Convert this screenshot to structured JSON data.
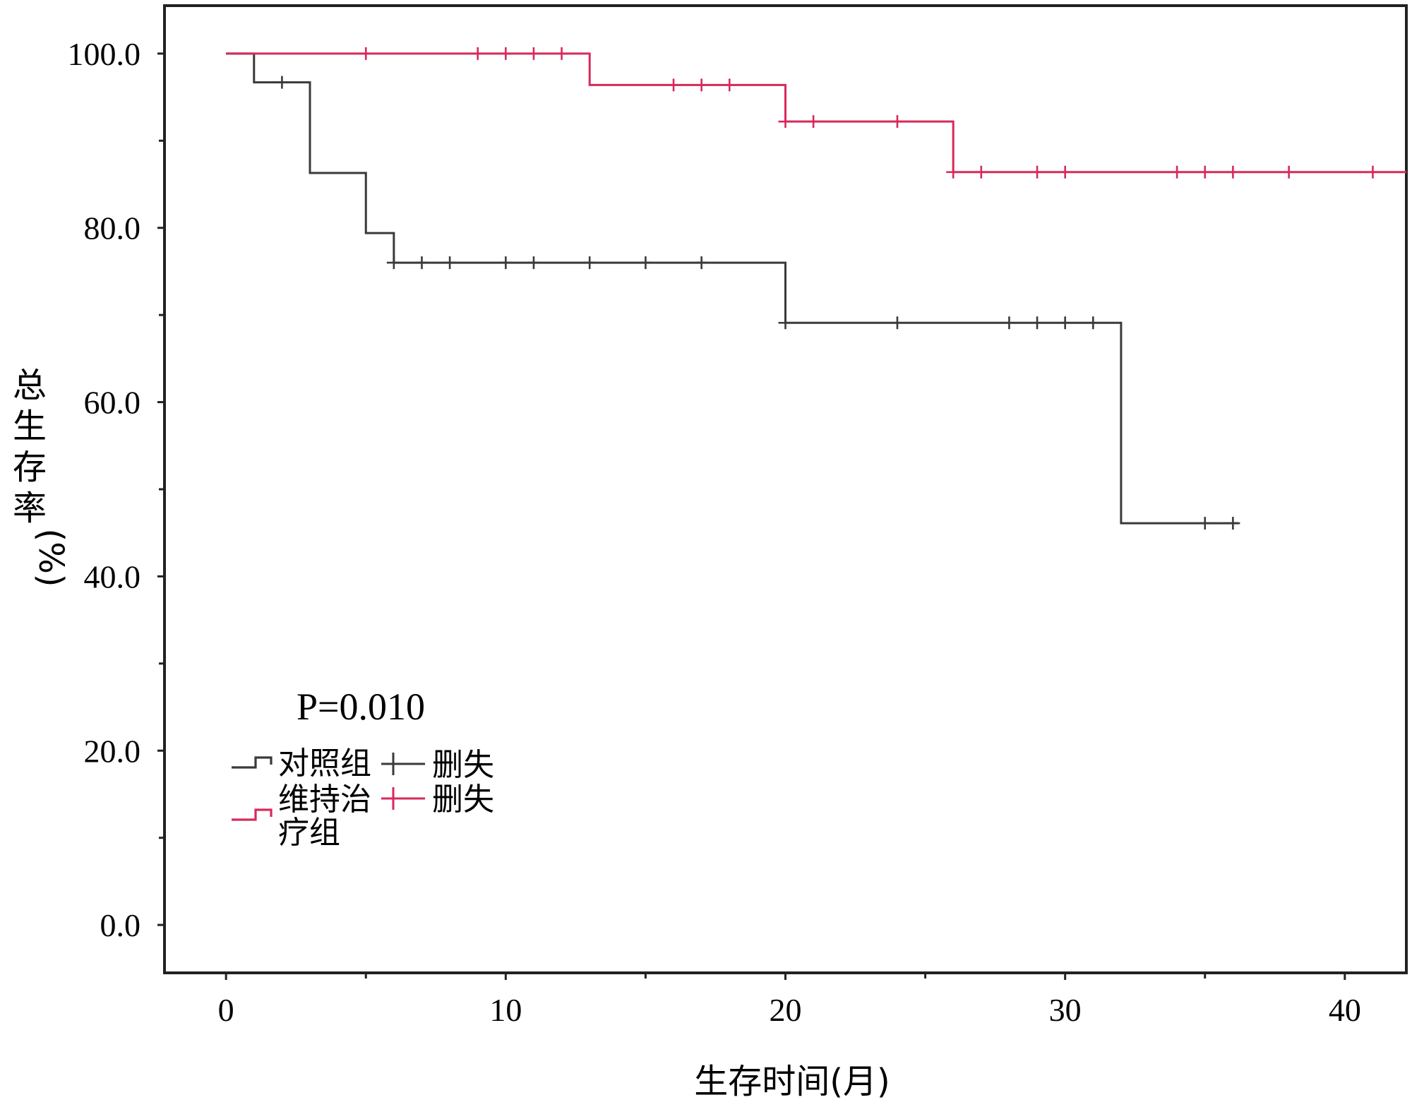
{
  "chart_data": {
    "type": "line",
    "step": true,
    "xlabel": "生存时间(月)",
    "ylabel": "总生存率(%)",
    "xlim": [
      -2.2,
      42.2
    ],
    "ylim": [
      -5.5,
      105.5
    ],
    "x_ticks": [
      0,
      10,
      20,
      30,
      40
    ],
    "x_tick_labels": [
      "0",
      "10",
      "20",
      "30",
      "40"
    ],
    "x_minor_ticks": [
      5,
      15,
      25,
      35
    ],
    "y_ticks": [
      0,
      20,
      40,
      60,
      80,
      100
    ],
    "y_tick_labels": [
      "0.0",
      "20.0",
      "40.0",
      "60.0",
      "80.0",
      "100.0"
    ],
    "y_minor_ticks": [
      10,
      30,
      50,
      70,
      90
    ],
    "annotation": "P=0.010",
    "legend_placement": "lower-left",
    "series": [
      {
        "name": "对照组",
        "censor_name": "删失",
        "color": "#3a3a3a",
        "steps": [
          [
            0,
            100
          ],
          [
            1,
            96.7
          ],
          [
            3,
            86.3
          ],
          [
            5,
            79.4
          ],
          [
            6,
            76.0
          ],
          [
            20,
            69.1
          ],
          [
            32,
            46.1
          ],
          [
            36.2,
            46.1
          ]
        ],
        "censored": [
          [
            2,
            96.7
          ],
          [
            6,
            76.0
          ],
          [
            7,
            76.0
          ],
          [
            8,
            76.0
          ],
          [
            10,
            76.0
          ],
          [
            11,
            76.0
          ],
          [
            13,
            76.0
          ],
          [
            15,
            76.0
          ],
          [
            17,
            76.0
          ],
          [
            20,
            69.1
          ],
          [
            24,
            69.1
          ],
          [
            28,
            69.1
          ],
          [
            29,
            69.1
          ],
          [
            30,
            69.1
          ],
          [
            31,
            69.1
          ],
          [
            35,
            46.1
          ],
          [
            36,
            46.1
          ]
        ]
      },
      {
        "name": "维持治疗组",
        "censor_name": "删失",
        "color": "#d8295a",
        "steps": [
          [
            0,
            100
          ],
          [
            13,
            96.4
          ],
          [
            20,
            92.2
          ],
          [
            26,
            86.4
          ],
          [
            42.2,
            86.4
          ]
        ],
        "censored": [
          [
            5,
            100
          ],
          [
            9,
            100
          ],
          [
            10,
            100
          ],
          [
            11,
            100
          ],
          [
            12,
            100
          ],
          [
            16,
            96.4
          ],
          [
            17,
            96.4
          ],
          [
            18,
            96.4
          ],
          [
            20,
            92.2
          ],
          [
            21,
            92.2
          ],
          [
            24,
            92.2
          ],
          [
            26,
            86.4
          ],
          [
            27,
            86.4
          ],
          [
            29,
            86.4
          ],
          [
            30,
            86.4
          ],
          [
            34,
            86.4
          ],
          [
            35,
            86.4
          ],
          [
            36,
            86.4
          ],
          [
            38,
            86.4
          ],
          [
            41,
            86.4
          ]
        ]
      }
    ]
  }
}
